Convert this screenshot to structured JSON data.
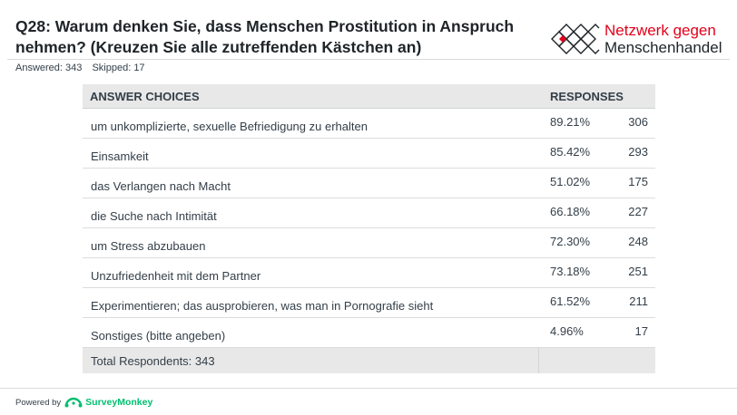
{
  "question": {
    "title": "Q28: Warum denken Sie, dass Menschen Prostitution in Anspruch nehmen? (Kreuzen Sie alle zutreffenden Kästchen an)"
  },
  "logo": {
    "line1": "Netzwerk gegen",
    "line2": "Menschenhandel",
    "accent_color": "#e2001a"
  },
  "meta": {
    "answered": "Answered: 343",
    "skipped": "Skipped: 17"
  },
  "table": {
    "headers": {
      "answer_choices": "ANSWER CHOICES",
      "responses": "RESPONSES"
    },
    "rows": [
      {
        "label": "um unkomplizierte, sexuelle Befriedigung zu erhalten",
        "pct": "89.21%",
        "count": "306"
      },
      {
        "label": "Einsamkeit",
        "pct": "85.42%",
        "count": "293"
      },
      {
        "label": "das Verlangen nach Macht",
        "pct": "51.02%",
        "count": "175"
      },
      {
        "label": "die Suche nach Intimität",
        "pct": "66.18%",
        "count": "227"
      },
      {
        "label": "um Stress abzubauen",
        "pct": "72.30%",
        "count": "248"
      },
      {
        "label": "Unzufriedenheit mit dem Partner",
        "pct": "73.18%",
        "count": "251"
      },
      {
        "label": "Experimentieren; das ausprobieren, was man in Pornografie sieht",
        "pct": "61.52%",
        "count": "211"
      },
      {
        "label": "Sonstiges (bitte angeben)",
        "pct": "4.96%",
        "count": "17"
      }
    ],
    "total": "Total Respondents: 343"
  },
  "footer": {
    "powered_by": "Powered by",
    "brand": "SurveyMonkey",
    "brand_color": "#00bf6f"
  }
}
